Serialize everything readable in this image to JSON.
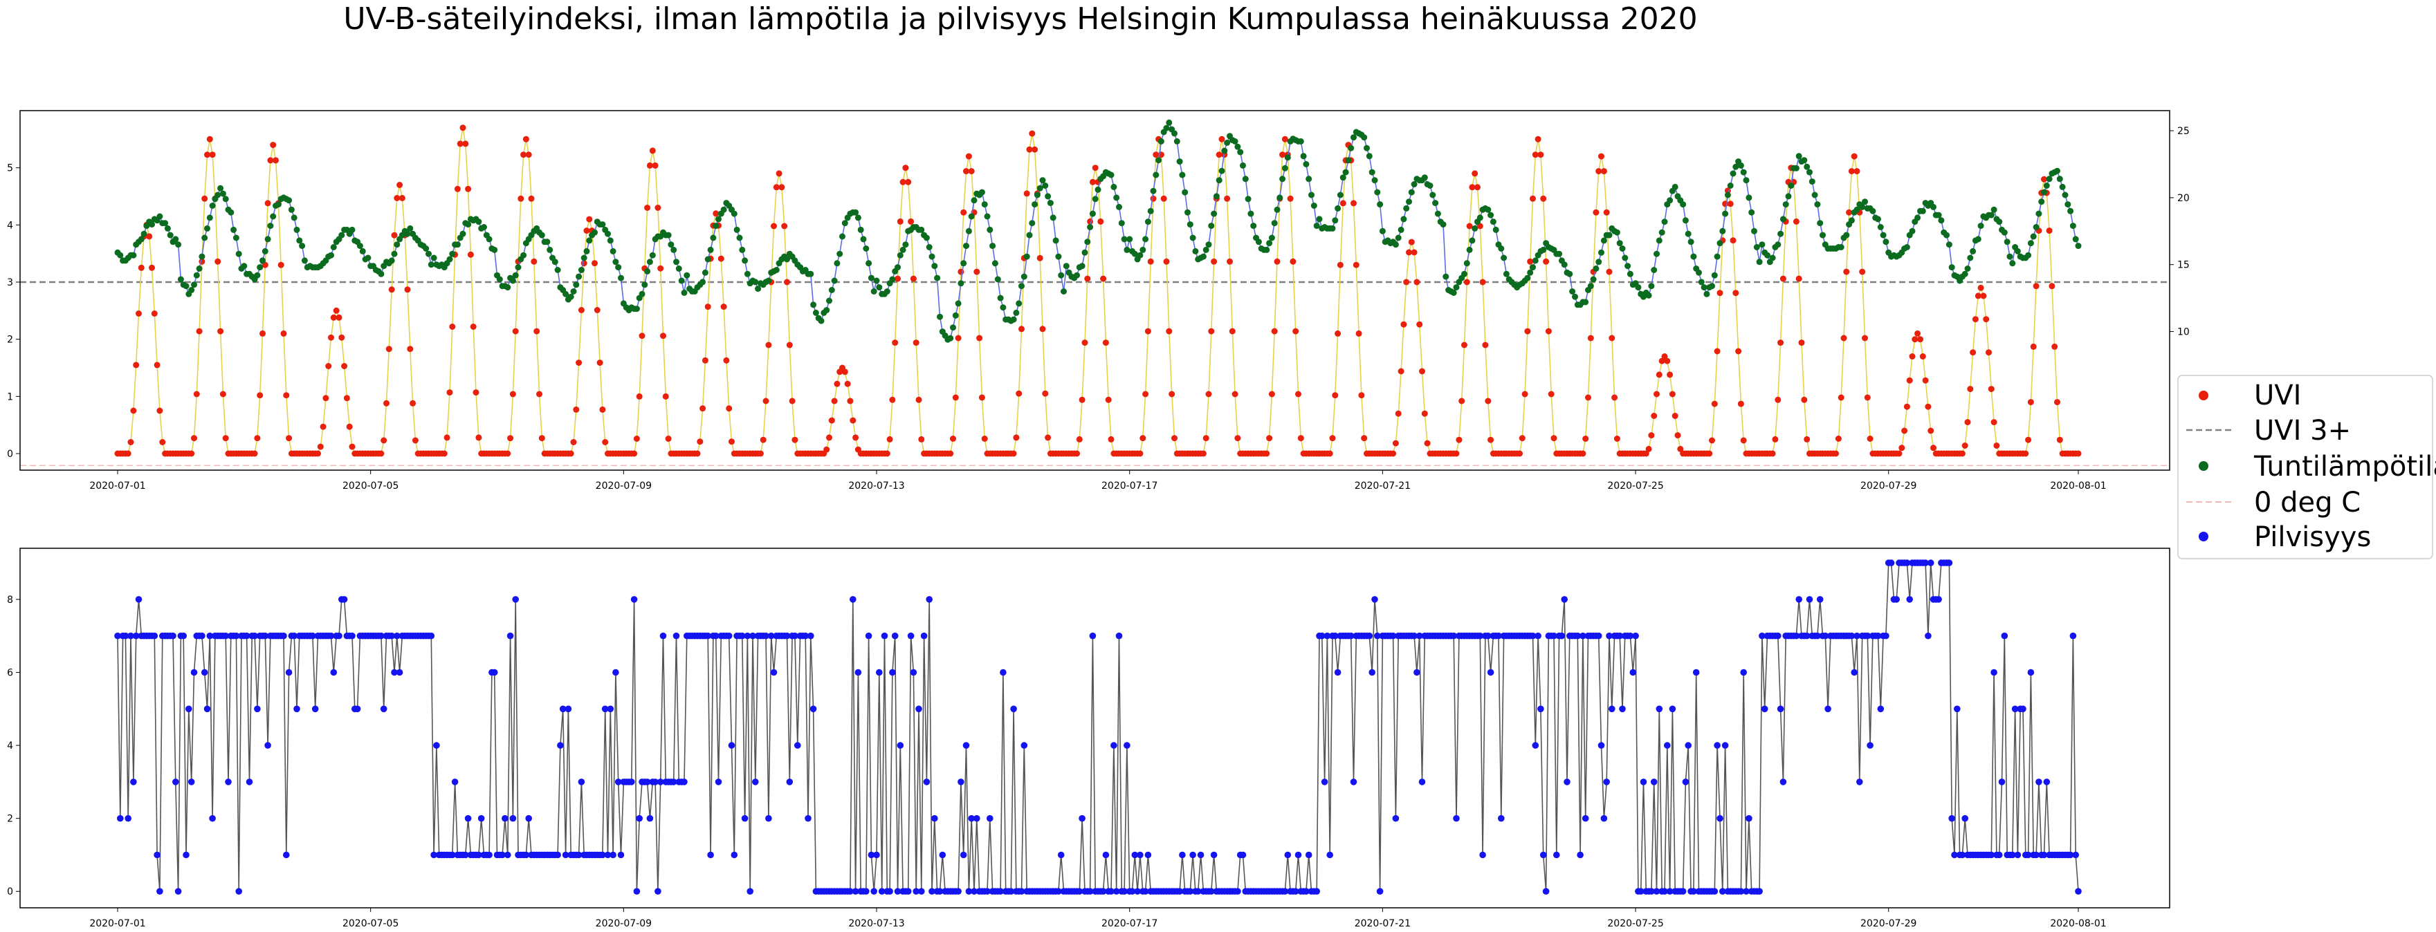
{
  "figure": {
    "title": "UV-B-säteilyindeksi, ilman lämpötila ja pilvisyys Helsingin Kumpulassa heinäkuussa 2020"
  },
  "legend": {
    "placement": "right",
    "items": [
      {
        "label": "UVI",
        "marker": "dot",
        "color": "#e8200c"
      },
      {
        "label": "UVI 3+",
        "marker": "dashed-line",
        "color": "#808080"
      },
      {
        "label": "Tuntilämpötila",
        "marker": "dot",
        "color": "#0b6b1e"
      },
      {
        "label": "0 deg C",
        "marker": "dashed-line",
        "color": "#f4b8b8"
      },
      {
        "label": "Pilvisyys",
        "marker": "dot",
        "color": "#1414f0"
      }
    ]
  },
  "colors": {
    "uvi_points": "#e8200c",
    "uvi_line": "#e6d24a",
    "temp_points": "#0b6b1e",
    "temp_line": "#5a6ee6",
    "cloud_points": "#1414f0",
    "cloud_line": "#555555",
    "threshold_line": "#808080",
    "zero_line": "#f4b8b8"
  },
  "chart_data": [
    {
      "type": "line",
      "panel": "top",
      "x_ticks": [
        "2020-07-01",
        "2020-07-05",
        "2020-07-09",
        "2020-07-13",
        "2020-07-17",
        "2020-07-21",
        "2020-07-25",
        "2020-07-29",
        "2020-08-01"
      ],
      "x_range": [
        "2020-07-01",
        "2020-08-01"
      ],
      "y_left": {
        "label": "",
        "ticks": [
          0,
          1,
          2,
          3,
          4,
          5
        ],
        "range": [
          -0.29,
          6.0
        ]
      },
      "y_right": {
        "label": "",
        "ticks": [
          10,
          15,
          20,
          25
        ],
        "range": [
          -0.35,
          26.5
        ]
      },
      "grid": false,
      "reference_lines": [
        {
          "name": "UVI 3+",
          "axis": "left",
          "value": 3,
          "style": "dashed"
        },
        {
          "name": "0 deg C",
          "axis": "right",
          "value": 0,
          "style": "dashed"
        }
      ],
      "sampling": "hourly, 2020-07-01 00:00 to 2020-08-01 00:00",
      "series": [
        {
          "name": "UVI",
          "axis": "left",
          "note": "Hourly UV index values read from the chart: each day rises from ~0 at night to a midday peak and back. Daily midday peaks listed below.",
          "daily_peak": [
            4.0,
            5.5,
            5.4,
            2.5,
            4.7,
            5.7,
            5.5,
            4.1,
            5.3,
            4.2,
            4.9,
            1.5,
            5.0,
            5.2,
            5.6,
            5.0,
            5.5,
            5.5,
            5.5,
            5.4,
            3.7,
            4.9,
            5.5,
            5.2,
            1.7,
            4.6,
            5.0,
            5.2,
            2.1,
            2.9,
            4.8
          ],
          "night_value": 0.0
        },
        {
          "name": "Tuntilämpötila",
          "axis": "right",
          "note": "Hourly air temperature (°C). Daily minimum / maximum read from the chart.",
          "daily_min": [
            15.5,
            13.0,
            14.0,
            14.5,
            14.5,
            15.0,
            13.5,
            12.5,
            11.5,
            13.0,
            13.5,
            11.0,
            13.0,
            9.5,
            10.5,
            14.0,
            15.5,
            15.5,
            16.0,
            17.5,
            16.5,
            13.0,
            13.5,
            12.0,
            12.5,
            13.0,
            15.5,
            16.0,
            15.5,
            14.0,
            15.5
          ],
          "daily_max": [
            18.5,
            20.5,
            20.0,
            17.5,
            17.5,
            18.5,
            17.5,
            18.0,
            17.5,
            19.5,
            15.5,
            19.0,
            18.0,
            20.5,
            21.0,
            22.0,
            25.5,
            24.5,
            24.5,
            25.0,
            21.5,
            19.0,
            16.5,
            17.5,
            20.5,
            22.5,
            23.0,
            19.5,
            19.5,
            19.0,
            22.0
          ]
        }
      ]
    },
    {
      "type": "line",
      "panel": "bottom",
      "x_ticks": [
        "2020-07-01",
        "2020-07-05",
        "2020-07-09",
        "2020-07-13",
        "2020-07-17",
        "2020-07-21",
        "2020-07-25",
        "2020-07-29",
        "2020-08-01"
      ],
      "x_range": [
        "2020-07-01",
        "2020-08-01"
      ],
      "y": {
        "label": "",
        "ticks": [
          0,
          2,
          4,
          6,
          8
        ],
        "range": [
          -0.45,
          9.4
        ]
      },
      "grid": false,
      "sampling": "hourly, 2020-07-01 00:00 to 2020-08-01 00:00",
      "series": [
        {
          "name": "Pilvisyys",
          "note": "Hourly cloud cover in oktas (0–9). Dominant values by period read from the chart.",
          "segments": [
            {
              "from": "2020-07-01",
              "to": "2020-07-02",
              "typical": 7,
              "range": [
                0,
                8
              ]
            },
            {
              "from": "2020-07-02",
              "to": "2020-07-04",
              "typical": 7,
              "range": [
                0,
                8
              ]
            },
            {
              "from": "2020-07-04",
              "to": "2020-07-06",
              "typical": 7,
              "range": [
                5,
                8
              ]
            },
            {
              "from": "2020-07-06",
              "to": "2020-07-09",
              "typical": 1,
              "range": [
                0,
                8
              ]
            },
            {
              "from": "2020-07-09",
              "to": "2020-07-10",
              "typical": 3,
              "range": [
                0,
                8
              ]
            },
            {
              "from": "2020-07-10",
              "to": "2020-07-12",
              "typical": 7,
              "range": [
                0,
                7
              ]
            },
            {
              "from": "2020-07-12",
              "to": "2020-07-14",
              "typical": 0,
              "range": [
                0,
                8
              ]
            },
            {
              "from": "2020-07-14",
              "to": "2020-07-16",
              "typical": 0,
              "range": [
                0,
                7
              ]
            },
            {
              "from": "2020-07-16",
              "to": "2020-07-17",
              "typical": 0,
              "range": [
                0,
                7
              ]
            },
            {
              "from": "2020-07-17",
              "to": "2020-07-20",
              "typical": 0,
              "range": [
                0,
                1
              ]
            },
            {
              "from": "2020-07-20",
              "to": "2020-07-23",
              "typical": 7,
              "range": [
                0,
                8
              ]
            },
            {
              "from": "2020-07-23",
              "to": "2020-07-25",
              "typical": 7,
              "range": [
                0,
                8
              ]
            },
            {
              "from": "2020-07-25",
              "to": "2020-07-27",
              "typical": 0,
              "range": [
                0,
                7
              ]
            },
            {
              "from": "2020-07-27",
              "to": "2020-07-29",
              "typical": 7,
              "range": [
                3,
                8
              ]
            },
            {
              "from": "2020-07-29",
              "to": "2020-07-30",
              "typical": 9,
              "range": [
                7,
                9
              ]
            },
            {
              "from": "2020-07-30",
              "to": "2020-08-01",
              "typical": 1,
              "range": [
                0,
                7
              ]
            }
          ]
        }
      ]
    }
  ]
}
